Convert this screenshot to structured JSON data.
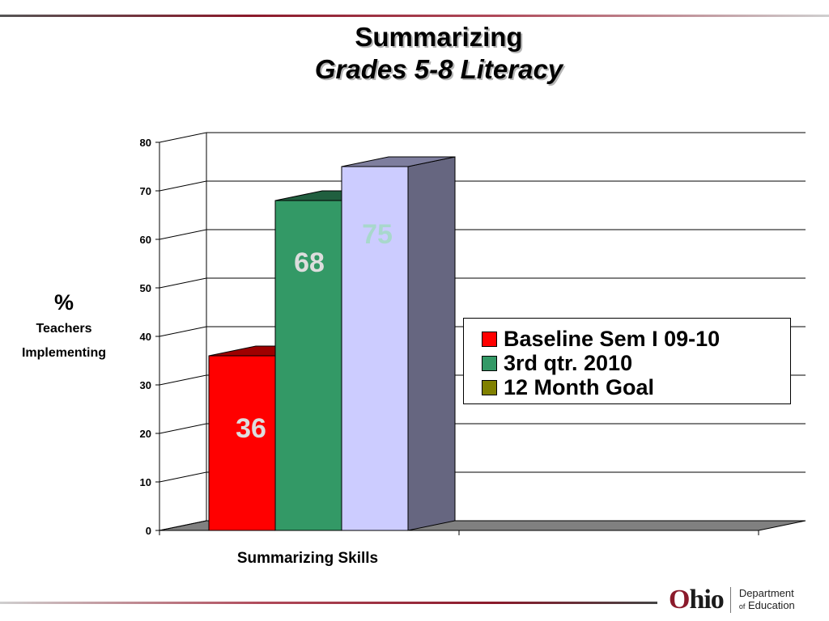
{
  "title_line1": "Summarizing",
  "title_line2": "Grades 5-8 Literacy",
  "colors": {
    "accent": "#8b1a2b"
  },
  "chart_data": {
    "type": "bar",
    "categories": [
      "Summarizing Skills"
    ],
    "series": [
      {
        "name": "Baseline Sem I 09-10",
        "values": [
          36
        ],
        "color": "#ff0000"
      },
      {
        "name": "3rd qtr. 2010",
        "values": [
          68
        ],
        "color": "#339966"
      },
      {
        "name": "12 Month Goal",
        "values": [
          75
        ],
        "color": "#ccccff"
      }
    ],
    "legend_colors": [
      "#ff0000",
      "#339966",
      "#808000"
    ],
    "data_labels": [
      "36",
      "68",
      "75"
    ],
    "label_colors": [
      "#dddddd",
      "#dddddd",
      "#a8d8cc"
    ],
    "ylabel_symbol": "%",
    "ylabel_line1": "Teachers",
    "ylabel_line2": "Implementing",
    "xlabel": "Summarizing Skills",
    "ylim": [
      0,
      80
    ],
    "yticks": [
      0,
      10,
      20,
      30,
      40,
      50,
      60,
      70,
      80
    ],
    "grid": true,
    "legend_position": "right",
    "style": "3d"
  },
  "logo": {
    "ohio": "hio",
    "ohio_initial": "O",
    "line1": "Department",
    "line2_small": "of",
    "line2": "Education"
  }
}
